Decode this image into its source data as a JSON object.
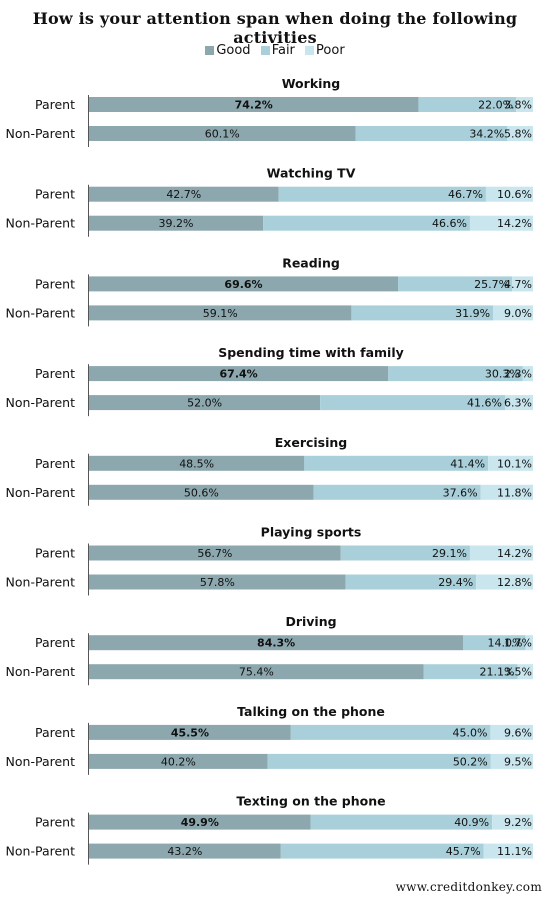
{
  "chart_data": {
    "type": "bar",
    "title": "How is your attention span when doing the following activities",
    "legend": [
      "Good",
      "Fair",
      "Poor"
    ],
    "colors": {
      "Good": "#8ca8ae",
      "Fair": "#a9d0da",
      "Poor": "#c9e6ee"
    },
    "row_labels": [
      "Parent",
      "Non-Parent"
    ],
    "groups": [
      {
        "name": "Working",
        "rows": [
          {
            "label": "Parent",
            "values": [
              74.2,
              22.0,
              3.8
            ],
            "display": [
              "74.2%",
              "22.0%",
              "3.8%"
            ],
            "bold_good": true
          },
          {
            "label": "Non-Parent",
            "values": [
              60.1,
              34.2,
              5.8
            ],
            "display": [
              "60.1%",
              "34.2%",
              "5.8%"
            ],
            "bold_good": false
          }
        ]
      },
      {
        "name": "Watching TV",
        "rows": [
          {
            "label": "Parent",
            "values": [
              42.7,
              46.7,
              10.6
            ],
            "display": [
              "42.7%",
              "46.7%",
              "10.6%"
            ],
            "bold_good": false
          },
          {
            "label": "Non-Parent",
            "values": [
              39.2,
              46.6,
              14.2
            ],
            "display": [
              "39.2%",
              "46.6%",
              "14.2%"
            ],
            "bold_good": false
          }
        ]
      },
      {
        "name": "Reading",
        "rows": [
          {
            "label": "Parent",
            "values": [
              69.6,
              25.7,
              4.7
            ],
            "display": [
              "69.6%",
              "25.7%",
              "4.7%"
            ],
            "bold_good": true
          },
          {
            "label": "Non-Parent",
            "values": [
              59.1,
              31.9,
              9.0
            ],
            "display": [
              "59.1%",
              "31.9%",
              "9.0%"
            ],
            "bold_good": false
          }
        ]
      },
      {
        "name": "Spending time with family",
        "rows": [
          {
            "label": "Parent",
            "values": [
              67.4,
              30.3,
              2.3
            ],
            "display": [
              "67.4%",
              "30.3%",
              "2.3%"
            ],
            "bold_good": true
          },
          {
            "label": "Non-Parent",
            "values": [
              52.0,
              41.6,
              6.3
            ],
            "display": [
              "52.0%",
              "41.6%",
              "6.3%"
            ],
            "bold_good": false
          }
        ]
      },
      {
        "name": "Exercising",
        "rows": [
          {
            "label": "Parent",
            "values": [
              48.5,
              41.4,
              10.1
            ],
            "display": [
              "48.5%",
              "41.4%",
              "10.1%"
            ],
            "bold_good": false
          },
          {
            "label": "Non-Parent",
            "values": [
              50.6,
              37.6,
              11.8
            ],
            "display": [
              "50.6%",
              "37.6%",
              "11.8%"
            ],
            "bold_good": false
          }
        ]
      },
      {
        "name": "Playing sports",
        "rows": [
          {
            "label": "Parent",
            "values": [
              56.7,
              29.1,
              14.2
            ],
            "display": [
              "56.7%",
              "29.1%",
              "14.2%"
            ],
            "bold_good": false
          },
          {
            "label": "Non-Parent",
            "values": [
              57.8,
              29.4,
              12.8
            ],
            "display": [
              "57.8%",
              "29.4%",
              "12.8%"
            ],
            "bold_good": false
          }
        ]
      },
      {
        "name": "Driving",
        "rows": [
          {
            "label": "Parent",
            "values": [
              84.3,
              14.0,
              1.7
            ],
            "display": [
              "84.3%",
              "14.0%",
              "1.7%"
            ],
            "bold_good": true
          },
          {
            "label": "Non-Parent",
            "values": [
              75.4,
              21.1,
              3.5
            ],
            "display": [
              "75.4%",
              "21.1%",
              "3.5%"
            ],
            "bold_good": false
          }
        ]
      },
      {
        "name": "Talking on the phone",
        "rows": [
          {
            "label": "Parent",
            "values": [
              45.5,
              45.0,
              9.6
            ],
            "display": [
              "45.5%",
              "45.0%",
              "9.6%"
            ],
            "bold_good": true
          },
          {
            "label": "Non-Parent",
            "values": [
              40.2,
              50.2,
              9.5
            ],
            "display": [
              "40.2%",
              "50.2%",
              "9.5%"
            ],
            "bold_good": false
          }
        ]
      },
      {
        "name": "Texting on the phone",
        "rows": [
          {
            "label": "Parent",
            "values": [
              49.9,
              40.9,
              9.2
            ],
            "display": [
              "49.9%",
              "40.9%",
              "9.2%"
            ],
            "bold_good": true
          },
          {
            "label": "Non-Parent",
            "values": [
              43.2,
              45.7,
              11.1
            ],
            "display": [
              "43.2%",
              "45.7%",
              "11.1%"
            ],
            "bold_good": false
          }
        ]
      }
    ]
  },
  "footer": "www.creditdonkey.com"
}
